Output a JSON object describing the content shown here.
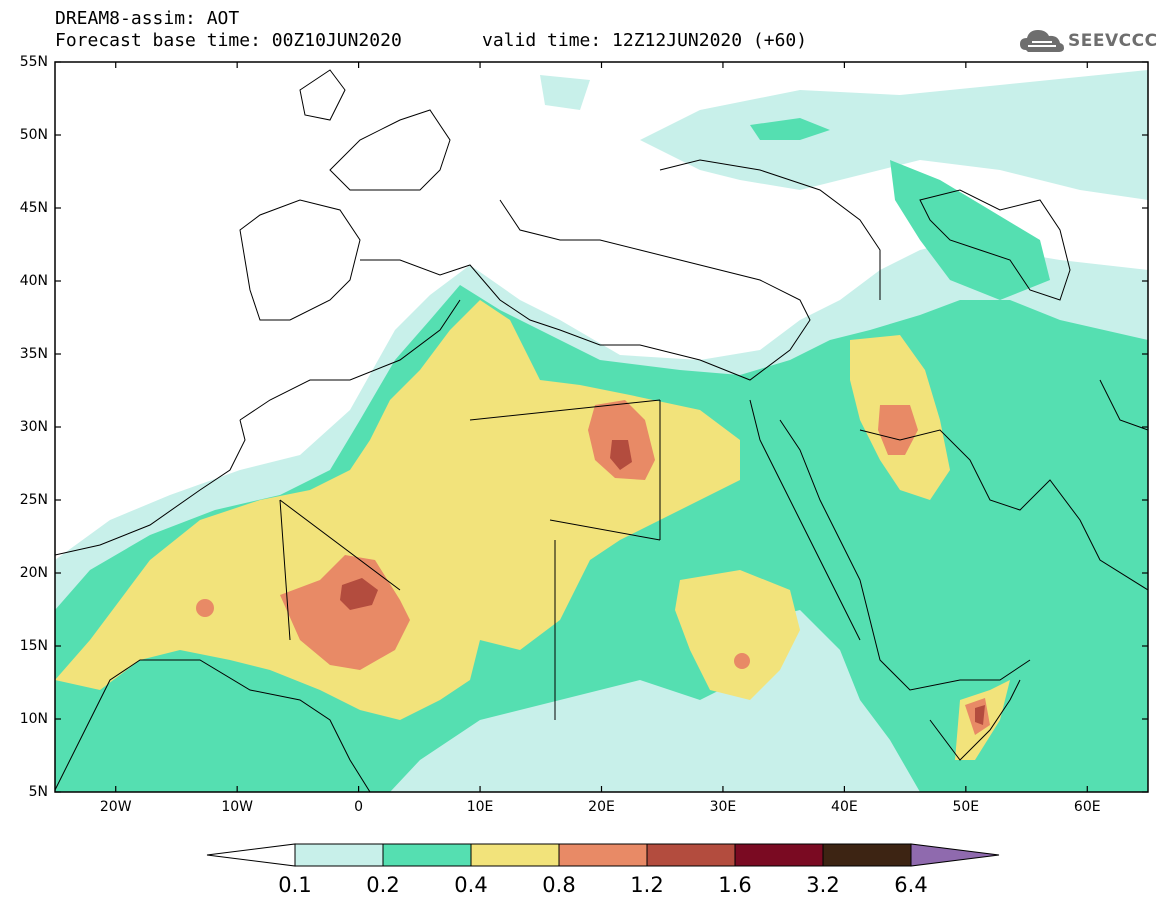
{
  "header": {
    "title_line1": "DREAM8-assim: AOT",
    "title_line2": "Forecast base time: 00Z10JUN2020",
    "valid_time": "valid time: 12Z12JUN2020 (+60)"
  },
  "logo": {
    "text": "SEEVCCC",
    "icon": "cloud-icon"
  },
  "map": {
    "projection": "lat-lon",
    "lon_range": [
      -25,
      65
    ],
    "lat_range": [
      5,
      55
    ],
    "lat_ticks": [
      {
        "value": 55,
        "label": "55N"
      },
      {
        "value": 50,
        "label": "50N"
      },
      {
        "value": 45,
        "label": "45N"
      },
      {
        "value": 40,
        "label": "40N"
      },
      {
        "value": 35,
        "label": "35N"
      },
      {
        "value": 30,
        "label": "30N"
      },
      {
        "value": 25,
        "label": "25N"
      },
      {
        "value": 20,
        "label": "20N"
      },
      {
        "value": 15,
        "label": "15N"
      },
      {
        "value": 10,
        "label": "10N"
      },
      {
        "value": 5,
        "label": "5N"
      }
    ],
    "lon_ticks": [
      {
        "value": -20,
        "label": "20W"
      },
      {
        "value": -10,
        "label": "10W"
      },
      {
        "value": 0,
        "label": "0"
      },
      {
        "value": 10,
        "label": "10E"
      },
      {
        "value": 20,
        "label": "20E"
      },
      {
        "value": 30,
        "label": "30E"
      },
      {
        "value": 40,
        "label": "40E"
      },
      {
        "value": 50,
        "label": "50E"
      },
      {
        "value": 60,
        "label": "60E"
      }
    ],
    "field": "AOT"
  },
  "colorbar": {
    "levels": [
      "0.1",
      "0.2",
      "0.4",
      "0.8",
      "1.2",
      "1.6",
      "3.2",
      "6.4"
    ],
    "colors": [
      "#c8f0ea",
      "#55dfb1",
      "#f2e37b",
      "#e88a66",
      "#b34c3e",
      "#7a0a22",
      "#3d2413",
      "#8f6aae"
    ],
    "under_color": "#ffffff",
    "over_color": "#8f6aae"
  }
}
